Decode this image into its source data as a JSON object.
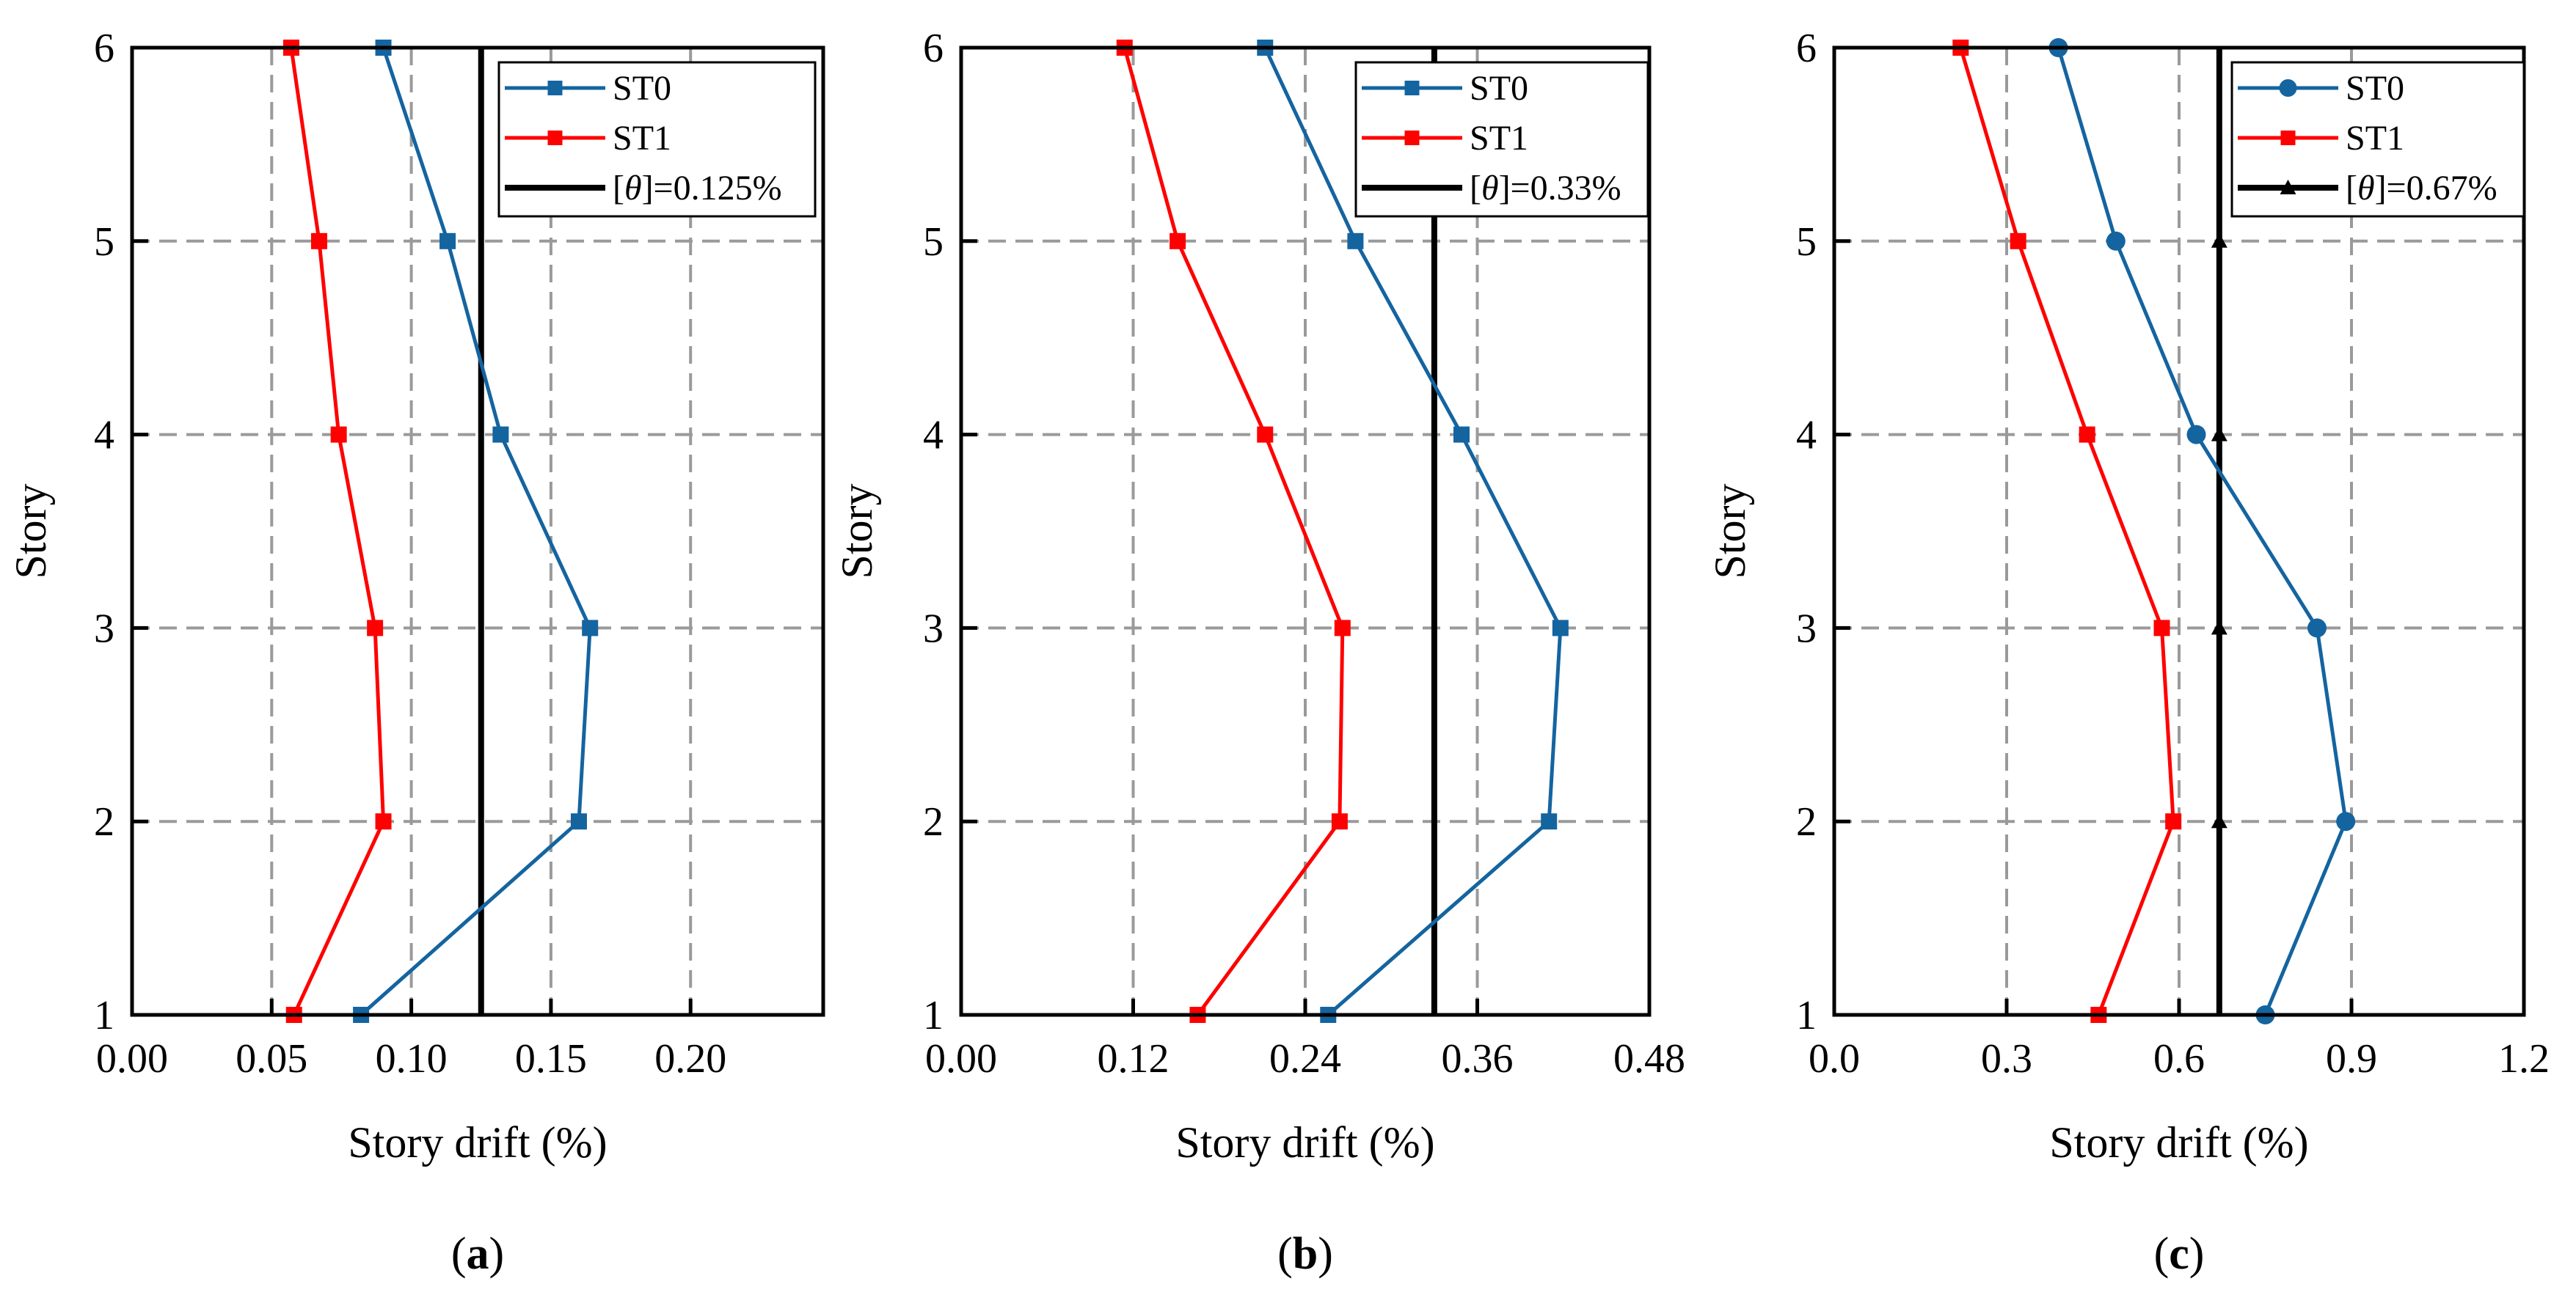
{
  "chart_data": [
    {
      "type": "line",
      "panel_label": "(a)",
      "panel_letter": "a",
      "xlabel": "Story drift (%)",
      "ylabel": "Story",
      "xlim": [
        0,
        0.2475
      ],
      "ylim": [
        1,
        6
      ],
      "xticks": [
        0,
        0.05,
        0.1,
        0.15,
        0.2
      ],
      "xtick_labels": [
        "0.00",
        "0.05",
        "0.10",
        "0.15",
        "0.20"
      ],
      "yticks": [
        1,
        2,
        3,
        4,
        5,
        6
      ],
      "ytick_labels": [
        "1",
        "2",
        "3",
        "4",
        "5",
        "6"
      ],
      "grid": true,
      "limit": {
        "value": 0.125,
        "label_prefix": "[",
        "symbol": "θ",
        "label_suffix": "]=0.125%",
        "marker": "none"
      },
      "series": [
        {
          "name": "ST0",
          "color": "#1464a0",
          "marker": "square",
          "x": [
            0.082,
            0.16,
            0.164,
            0.132,
            0.113,
            0.09
          ],
          "y": [
            1,
            2,
            3,
            4,
            5,
            6
          ]
        },
        {
          "name": "ST1",
          "color": "#ff0000",
          "marker": "square",
          "x": [
            0.058,
            0.09,
            0.087,
            0.074,
            0.067,
            0.057
          ],
          "y": [
            1,
            2,
            3,
            4,
            5,
            6
          ]
        }
      ]
    },
    {
      "type": "line",
      "panel_label": "(b)",
      "panel_letter": "b",
      "xlabel": "Story drift (%)",
      "ylabel": "Story",
      "xlim": [
        0,
        0.48
      ],
      "ylim": [
        1,
        6
      ],
      "xticks": [
        0,
        0.12,
        0.24,
        0.36,
        0.48
      ],
      "xtick_labels": [
        "0.00",
        "0.12",
        "0.24",
        "0.36",
        "0.48"
      ],
      "yticks": [
        1,
        2,
        3,
        4,
        5,
        6
      ],
      "ytick_labels": [
        "1",
        "2",
        "3",
        "4",
        "5",
        "6"
      ],
      "grid": true,
      "limit": {
        "value": 0.33,
        "label_prefix": "[",
        "symbol": "θ",
        "label_suffix": "]=0.33%",
        "marker": "none"
      },
      "series": [
        {
          "name": "ST0",
          "color": "#1464a0",
          "marker": "square",
          "x": [
            0.256,
            0.41,
            0.418,
            0.349,
            0.275,
            0.212
          ],
          "y": [
            1,
            2,
            3,
            4,
            5,
            6
          ]
        },
        {
          "name": "ST1",
          "color": "#ff0000",
          "marker": "square",
          "x": [
            0.165,
            0.264,
            0.266,
            0.212,
            0.151,
            0.114
          ],
          "y": [
            1,
            2,
            3,
            4,
            5,
            6
          ]
        }
      ]
    },
    {
      "type": "line",
      "panel_label": "(c)",
      "panel_letter": "c",
      "xlabel": "Story drift (%)",
      "ylabel": "Story",
      "xlim": [
        0,
        1.2
      ],
      "ylim": [
        1,
        6
      ],
      "xticks": [
        0,
        0.3,
        0.6,
        0.9,
        1.2
      ],
      "xtick_labels": [
        "0.0",
        "0.3",
        "0.6",
        "0.9",
        "1.2"
      ],
      "yticks": [
        1,
        2,
        3,
        4,
        5,
        6
      ],
      "ytick_labels": [
        "1",
        "2",
        "3",
        "4",
        "5",
        "6"
      ],
      "grid": true,
      "limit": {
        "value": 0.67,
        "label_prefix": "[",
        "symbol": "θ",
        "label_suffix": "]=0.67%",
        "marker": "triangle"
      },
      "series": [
        {
          "name": "ST0",
          "color": "#1464a0",
          "marker": "circle",
          "x": [
            0.75,
            0.89,
            0.84,
            0.63,
            0.49,
            0.39
          ],
          "y": [
            1,
            2,
            3,
            4,
            5,
            6
          ]
        },
        {
          "name": "ST1",
          "color": "#ff0000",
          "marker": "square",
          "x": [
            0.46,
            0.59,
            0.57,
            0.44,
            0.32,
            0.22
          ],
          "y": [
            1,
            2,
            3,
            4,
            5,
            6
          ]
        }
      ]
    }
  ]
}
